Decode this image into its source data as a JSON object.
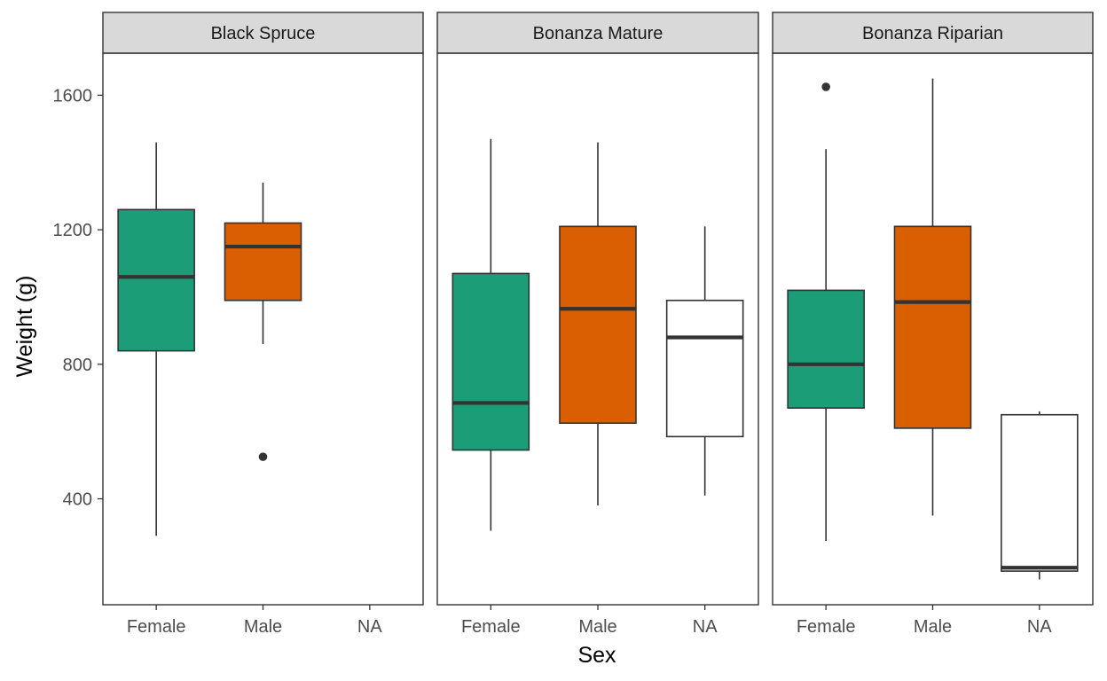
{
  "chart_data": {
    "type": "boxplot",
    "xlabel": "Sex",
    "ylabel": "Weight (g)",
    "ylim": [
      85,
      1725
    ],
    "yticks": [
      400,
      800,
      1200,
      1600
    ],
    "categories": [
      "Female",
      "Male",
      "NA"
    ],
    "grid": false,
    "legend": "none",
    "colors": {
      "Female": "#1b9e77",
      "Male": "#d95f02",
      "NA": "#ffffff"
    },
    "outline_color": "#333333",
    "panels": [
      {
        "name": "Black Spruce",
        "boxes": [
          {
            "category": "Female",
            "min": 290,
            "q1": 840,
            "median": 1060,
            "q3": 1260,
            "max": 1460,
            "outliers": []
          },
          {
            "category": "Male",
            "min": 860,
            "q1": 990,
            "median": 1150,
            "q3": 1220,
            "max": 1340,
            "outliers": [
              525
            ]
          }
        ]
      },
      {
        "name": "Bonanza Mature",
        "boxes": [
          {
            "category": "Female",
            "min": 305,
            "q1": 545,
            "median": 685,
            "q3": 1070,
            "max": 1470,
            "outliers": []
          },
          {
            "category": "Male",
            "min": 380,
            "q1": 625,
            "median": 965,
            "q3": 1210,
            "max": 1460,
            "outliers": []
          },
          {
            "category": "NA",
            "min": 410,
            "q1": 585,
            "median": 880,
            "q3": 990,
            "max": 1210,
            "outliers": []
          }
        ]
      },
      {
        "name": "Bonanza Riparian",
        "boxes": [
          {
            "category": "Female",
            "min": 275,
            "q1": 670,
            "median": 800,
            "q3": 1020,
            "max": 1440,
            "outliers": [
              1625
            ]
          },
          {
            "category": "Male",
            "min": 350,
            "q1": 610,
            "median": 985,
            "q3": 1210,
            "max": 1650,
            "outliers": []
          },
          {
            "category": "NA",
            "min": 160,
            "q1": 185,
            "median": 195,
            "q3": 650,
            "max": 660,
            "outliers": []
          }
        ]
      }
    ]
  }
}
